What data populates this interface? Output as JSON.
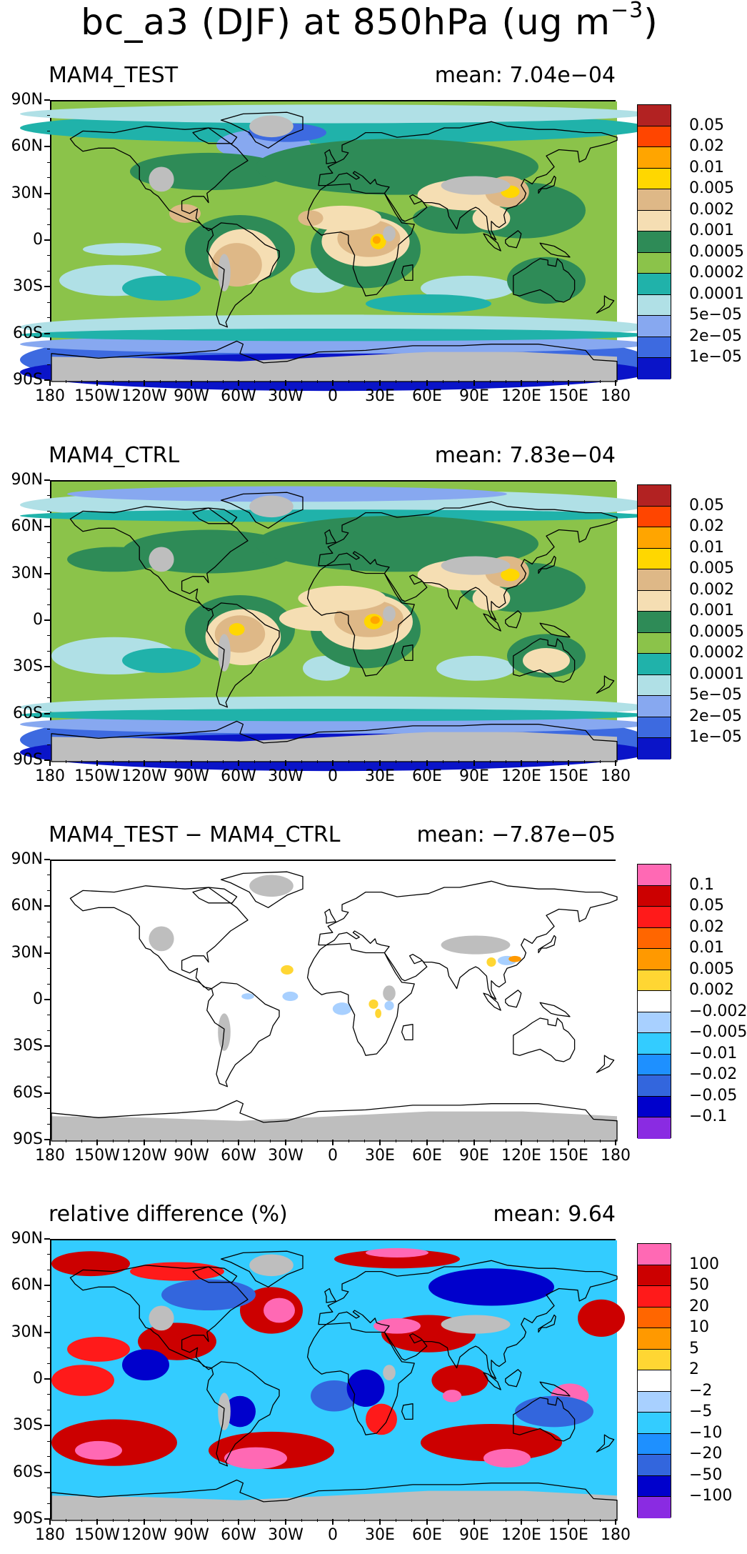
{
  "figure": {
    "title_main": "bc_a3 (DJF) at 850hPa (ug m",
    "title_exp": "−3",
    "title_end": ")"
  },
  "axes": {
    "lat_labels": [
      "90N",
      "60N",
      "30N",
      "0",
      "30S",
      "60S",
      "90S"
    ],
    "lon_labels": [
      "180",
      "150W",
      "120W",
      "90W",
      "60W",
      "30W",
      "0",
      "30E",
      "60E",
      "90E",
      "120E",
      "150E",
      "180"
    ]
  },
  "colorbars": {
    "abs": {
      "labels": [
        "0.05",
        "0.02",
        "0.01",
        "0.005",
        "0.002",
        "0.001",
        "0.0005",
        "0.0002",
        "0.0001",
        "5e−05",
        "2e−05",
        "1e−05"
      ],
      "colors": [
        "#b22222",
        "#ff4500",
        "#ffa500",
        "#ffd700",
        "#deb887",
        "#f5deb3",
        "#2e8b57",
        "#8bc34a",
        "#20b2aa",
        "#b0e0e6",
        "#87a8f0",
        "#3d6ae0",
        "#0a14c8"
      ]
    },
    "diff": {
      "labels": [
        "0.1",
        "0.05",
        "0.02",
        "0.01",
        "0.005",
        "0.002",
        "−0.002",
        "−0.005",
        "−0.01",
        "−0.02",
        "−0.05",
        "−0.1"
      ],
      "colors": [
        "#ff69b4",
        "#cc0000",
        "#ff1a1a",
        "#ff6600",
        "#ff9900",
        "#ffd633",
        "#ffffff",
        "#a8d0ff",
        "#33ccff",
        "#1e90ff",
        "#3366dd",
        "#0000cc",
        "#8a2be2"
      ]
    },
    "rel": {
      "labels": [
        "100",
        "50",
        "20",
        "10",
        "5",
        "2",
        "−2",
        "−5",
        "−10",
        "−20",
        "−50",
        "−100"
      ],
      "colors": [
        "#ff69b4",
        "#cc0000",
        "#ff1a1a",
        "#ff6600",
        "#ff9900",
        "#ffd633",
        "#ffffff",
        "#a8d0ff",
        "#33ccff",
        "#1e90ff",
        "#3366dd",
        "#0000cc",
        "#8a2be2"
      ]
    }
  },
  "panels": [
    {
      "label": "MAM4_TEST",
      "mean": "mean: 7.04e−04",
      "colorbar": "abs"
    },
    {
      "label": "MAM4_CTRL",
      "mean": "mean: 7.83e−04",
      "colorbar": "abs"
    },
    {
      "label": "MAM4_TEST − MAM4_CTRL",
      "mean": "mean: −7.87e−05",
      "colorbar": "diff"
    },
    {
      "label": "relative difference (%)",
      "mean": "mean:  9.64",
      "colorbar": "rel"
    }
  ]
}
